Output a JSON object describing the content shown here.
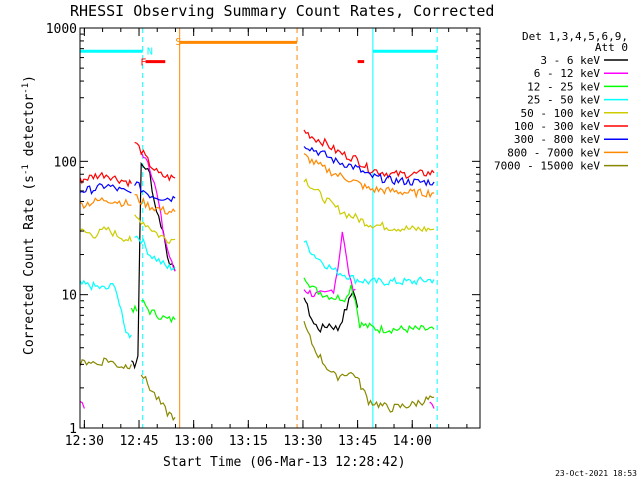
{
  "chart_data": {
    "type": "line",
    "title": "RHESSI Observing Summary Count Rates, Corrected",
    "xlabel": "Start Time (06-Mar-13 12:28:42)",
    "ylabel_pre": "Corrected Count Rate (s",
    "ylabel_sup1": "-1",
    "ylabel_mid": " detector",
    "ylabel_sup2": "-1",
    "ylabel_post": ")",
    "yscale": "log",
    "ylim": [
      1,
      1000
    ],
    "xlim_minutes": [
      12.48,
      14.31
    ],
    "y_ticks": [
      {
        "value": 1,
        "label": "1"
      },
      {
        "value": 10,
        "label": "10"
      },
      {
        "value": 100,
        "label": "100"
      },
      {
        "value": 1000,
        "label": "1000"
      }
    ],
    "x_ticks": [
      {
        "value": 12.5,
        "label": "12:30"
      },
      {
        "value": 12.75,
        "label": "12:45"
      },
      {
        "value": 13.0,
        "label": "13:00"
      },
      {
        "value": 13.25,
        "label": "13:15"
      },
      {
        "value": 13.5,
        "label": "13:30"
      },
      {
        "value": 13.75,
        "label": "13:45"
      },
      {
        "value": 14.0,
        "label": "14:00"
      }
    ],
    "legend_header": [
      "Det 1,3,4,5,6,9,",
      "Att 0"
    ],
    "series": [
      {
        "name": "3 - 6 keV",
        "color": "#000000",
        "segments": [
          [
            [
              12.715,
              3.2
            ],
            [
              12.73,
              3.0
            ],
            [
              12.745,
              3.5
            ],
            [
              12.75,
              12
            ],
            [
              12.76,
              95
            ],
            [
              12.78,
              90
            ],
            [
              12.8,
              80
            ],
            [
              12.82,
              50
            ],
            [
              12.84,
              38
            ],
            [
              12.86,
              30
            ],
            [
              12.88,
              20
            ],
            [
              12.9,
              16
            ],
            [
              12.915,
              15
            ]
          ],
          [
            [
              13.505,
              10
            ],
            [
              13.52,
              8
            ],
            [
              13.55,
              6
            ],
            [
              13.58,
              5.5
            ],
            [
              13.62,
              6
            ],
            [
              13.66,
              5.5
            ],
            [
              13.7,
              8
            ],
            [
              13.73,
              11
            ],
            [
              13.75,
              8
            ]
          ]
        ]
      },
      {
        "name": "6 - 12 keV",
        "color": "#ff00ff",
        "segments": [
          [
            [
              12.48,
              1.6
            ],
            [
              12.5,
              1.4
            ]
          ],
          [
            [
              12.76,
              115
            ],
            [
              12.78,
              110
            ],
            [
              12.8,
              90
            ],
            [
              12.82,
              70
            ],
            [
              12.84,
              48
            ],
            [
              12.86,
              30
            ],
            [
              12.88,
              22
            ],
            [
              12.9,
              17
            ],
            [
              12.915,
              15
            ]
          ],
          [
            [
              13.505,
              11
            ],
            [
              13.55,
              10
            ],
            [
              13.6,
              10
            ],
            [
              13.64,
              11
            ],
            [
              13.66,
              16
            ],
            [
              13.68,
              30
            ],
            [
              13.7,
              18
            ],
            [
              13.72,
              12
            ],
            [
              13.74,
              11
            ]
          ],
          [
            [
              14.08,
              1.6
            ],
            [
              14.1,
              1.4
            ]
          ]
        ]
      },
      {
        "name": "12 - 25 keV",
        "color": "#00ff00",
        "segments": [
          [
            [
              12.715,
              8
            ],
            [
              12.74,
              7.5
            ]
          ],
          [
            [
              12.76,
              9
            ],
            [
              12.8,
              7.5
            ],
            [
              12.84,
              7
            ],
            [
              12.88,
              6.5
            ],
            [
              12.915,
              6.5
            ]
          ],
          [
            [
              13.505,
              14
            ],
            [
              13.55,
              11
            ],
            [
              13.6,
              10
            ],
            [
              13.65,
              9.5
            ],
            [
              13.7,
              9.5
            ],
            [
              13.72,
              12
            ],
            [
              13.74,
              9
            ],
            [
              13.76,
              6
            ],
            [
              13.85,
              5.5
            ],
            [
              13.95,
              5.5
            ],
            [
              14.05,
              5.5
            ],
            [
              14.1,
              5.5
            ]
          ]
        ]
      },
      {
        "name": "25 - 50 keV",
        "color": "#00ffff",
        "segments": [
          [
            [
              12.48,
              12
            ],
            [
              12.55,
              11.5
            ],
            [
              12.6,
              11
            ],
            [
              12.64,
              12
            ],
            [
              12.68,
              6
            ],
            [
              12.7,
              5
            ],
            [
              12.715,
              5
            ]
          ],
          [
            [
              12.73,
              28
            ],
            [
              12.76,
              26
            ],
            [
              12.8,
              20
            ],
            [
              12.84,
              18
            ],
            [
              12.88,
              16
            ],
            [
              12.915,
              16
            ]
          ],
          [
            [
              13.505,
              25
            ],
            [
              13.55,
              20
            ],
            [
              13.6,
              17
            ],
            [
              13.65,
              15
            ],
            [
              13.7,
              14
            ],
            [
              13.74,
              13
            ],
            [
              13.8,
              12.5
            ],
            [
              13.9,
              12.5
            ],
            [
              14.0,
              12.5
            ],
            [
              14.1,
              13
            ]
          ]
        ]
      },
      {
        "name": "50 - 100 keV",
        "color": "#cccc00",
        "segments": [
          [
            [
              12.48,
              30
            ],
            [
              12.55,
              28
            ],
            [
              12.6,
              31
            ],
            [
              12.65,
              28
            ],
            [
              12.7,
              26
            ],
            [
              12.715,
              25
            ]
          ],
          [
            [
              12.73,
              38
            ],
            [
              12.76,
              36
            ],
            [
              12.8,
              32
            ],
            [
              12.84,
              28
            ],
            [
              12.88,
              26
            ],
            [
              12.915,
              26
            ]
          ],
          [
            [
              13.505,
              75
            ],
            [
              13.55,
              62
            ],
            [
              13.6,
              52
            ],
            [
              13.65,
              45
            ],
            [
              13.7,
              40
            ],
            [
              13.74,
              38
            ],
            [
              13.8,
              34
            ],
            [
              13.9,
              32
            ],
            [
              14.0,
              31
            ],
            [
              14.1,
              31
            ]
          ]
        ]
      },
      {
        "name": "100 - 300 keV",
        "color": "#ff0000",
        "segments": [
          [
            [
              12.48,
              72
            ],
            [
              12.55,
              78
            ],
            [
              12.6,
              80
            ],
            [
              12.65,
              74
            ],
            [
              12.7,
              70
            ],
            [
              12.715,
              68
            ]
          ],
          [
            [
              12.73,
              140
            ],
            [
              12.76,
              120
            ],
            [
              12.8,
              95
            ],
            [
              12.84,
              80
            ],
            [
              12.88,
              76
            ],
            [
              12.915,
              75
            ]
          ],
          [
            [
              13.505,
              170
            ],
            [
              13.55,
              150
            ],
            [
              13.6,
              138
            ],
            [
              13.65,
              120
            ],
            [
              13.7,
              110
            ],
            [
              13.74,
              105
            ],
            [
              13.8,
              88
            ],
            [
              13.9,
              80
            ],
            [
              14.0,
              80
            ],
            [
              14.1,
              82
            ]
          ]
        ]
      },
      {
        "name": "300 - 800 keV",
        "color": "#0000ff",
        "segments": [
          [
            [
              12.48,
              60
            ],
            [
              12.55,
              62
            ],
            [
              12.6,
              66
            ],
            [
              12.65,
              62
            ],
            [
              12.7,
              58
            ],
            [
              12.715,
              58
            ]
          ],
          [
            [
              12.73,
              70
            ],
            [
              12.76,
              62
            ],
            [
              12.8,
              56
            ],
            [
              12.84,
              54
            ],
            [
              12.88,
              53
            ],
            [
              12.915,
              53
            ]
          ],
          [
            [
              13.505,
              135
            ],
            [
              13.55,
              122
            ],
            [
              13.6,
              112
            ],
            [
              13.65,
              100
            ],
            [
              13.7,
              95
            ],
            [
              13.74,
              90
            ],
            [
              13.8,
              78
            ],
            [
              13.9,
              72
            ],
            [
              14.0,
              70
            ],
            [
              14.1,
              70
            ]
          ]
        ]
      },
      {
        "name": "800 - 7000 keV",
        "color": "#ff8800",
        "segments": [
          [
            [
              12.48,
              47
            ],
            [
              12.55,
              50
            ],
            [
              12.6,
              52
            ],
            [
              12.65,
              50
            ],
            [
              12.7,
              48
            ],
            [
              12.715,
              47
            ]
          ],
          [
            [
              12.73,
              55
            ],
            [
              12.76,
              50
            ],
            [
              12.8,
              46
            ],
            [
              12.84,
              44
            ],
            [
              12.88,
              42
            ],
            [
              12.915,
              42
            ]
          ],
          [
            [
              13.505,
              110
            ],
            [
              13.55,
              98
            ],
            [
              13.6,
              88
            ],
            [
              13.65,
              80
            ],
            [
              13.7,
              75
            ],
            [
              13.74,
              70
            ],
            [
              13.8,
              62
            ],
            [
              13.9,
              60
            ],
            [
              14.0,
              58
            ],
            [
              14.1,
              58
            ]
          ]
        ]
      },
      {
        "name": "7000 - 15000 keV",
        "color": "#888800",
        "segments": [
          [
            [
              12.48,
              3.0
            ],
            [
              12.52,
              3.2
            ],
            [
              12.56,
              3.0
            ],
            [
              12.6,
              3.3
            ],
            [
              12.64,
              3.0
            ],
            [
              12.68,
              2.9
            ],
            [
              12.715,
              3.0
            ]
          ],
          [
            [
              12.76,
              2.6
            ],
            [
              12.8,
              2.0
            ],
            [
              12.84,
              1.6
            ],
            [
              12.88,
              1.3
            ],
            [
              12.915,
              1.2
            ]
          ],
          [
            [
              13.505,
              6
            ],
            [
              13.55,
              4
            ],
            [
              13.6,
              3
            ],
            [
              13.65,
              2.4
            ],
            [
              13.7,
              2.6
            ],
            [
              13.74,
              2.5
            ],
            [
              13.8,
              1.6
            ],
            [
              13.9,
              1.4
            ],
            [
              14.0,
              1.5
            ],
            [
              14.1,
              1.7
            ]
          ]
        ]
      }
    ],
    "vertical_lines": [
      {
        "x": 12.48,
        "color": "#00ffff",
        "style": "solid"
      },
      {
        "x": 12.767,
        "color": "#00ffff",
        "style": "dashed"
      },
      {
        "x": 13.82,
        "color": "#00ffff",
        "style": "solid"
      },
      {
        "x": 14.114,
        "color": "#00ffff",
        "style": "dashed"
      },
      {
        "x": 12.936,
        "color": "#ff8800",
        "style": "solid"
      },
      {
        "x": 13.473,
        "color": "#ff8800",
        "style": "dashed"
      }
    ],
    "flag_bars": [
      {
        "x0": 12.48,
        "x1": 12.767,
        "y": 670,
        "color": "#00ffff"
      },
      {
        "x0": 13.82,
        "x1": 14.114,
        "y": 670,
        "color": "#00ffff"
      },
      {
        "x0": 12.936,
        "x1": 13.473,
        "y": 780,
        "color": "#ff8800"
      },
      {
        "x0": 12.78,
        "x1": 12.87,
        "y": 560,
        "color": "#ff0000"
      },
      {
        "x0": 13.75,
        "x1": 13.78,
        "y": 560,
        "color": "#ff0000"
      }
    ],
    "flag_labels": [
      {
        "text": "N",
        "x": 12.8,
        "y": 680,
        "color": "#00ffff"
      },
      {
        "text": "S",
        "x": 12.93,
        "y": 800,
        "color": "#ff8800"
      },
      {
        "text": "F",
        "x": 12.77,
        "y": 560,
        "color": "#ff0000"
      }
    ],
    "timestamp": "23-Oct-2021 18:53"
  }
}
